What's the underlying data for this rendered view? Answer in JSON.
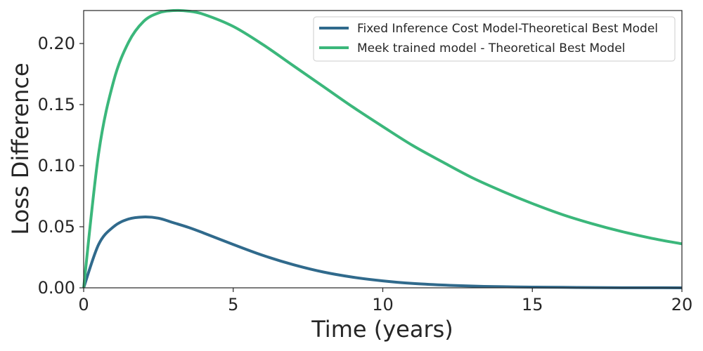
{
  "chart_data": {
    "type": "line",
    "title": "",
    "xlabel": "Time (years)",
    "ylabel": "Loss Difference",
    "xlim": [
      0,
      20
    ],
    "ylim": [
      0,
      0.227
    ],
    "xticks": [
      0,
      5,
      10,
      15,
      20
    ],
    "xtick_labels": [
      "0",
      "5",
      "10",
      "15",
      "20"
    ],
    "yticks": [
      0,
      0.05,
      0.1,
      0.15,
      0.2
    ],
    "ytick_labels": [
      "0.00",
      "0.05",
      "0.10",
      "0.15",
      "0.20"
    ],
    "grid": false,
    "legend_position": "top-right",
    "x": [
      0,
      0.5,
      1,
      1.5,
      2,
      2.5,
      3,
      3.5,
      4,
      5,
      6,
      7,
      8,
      9,
      10,
      11,
      12,
      13,
      14,
      15,
      16,
      17,
      18,
      19,
      20
    ],
    "series": [
      {
        "name": "Fixed Inference Cost Model-Theoretical Best Model",
        "color": "#306a8c",
        "values": [
          0,
          0.0355,
          0.05,
          0.0563,
          0.058,
          0.057,
          0.0533,
          0.0495,
          0.045,
          0.0355,
          0.0265,
          0.019,
          0.013,
          0.0087,
          0.0057,
          0.0036,
          0.0023,
          0.0014,
          0.0009,
          0.0006,
          0.0004,
          0.0002,
          0.0001,
          0.0001,
          0.0
        ]
      },
      {
        "name": "Meek trained model - Theoretical Best Model",
        "color": "#3bb77b",
        "values": [
          0,
          0.11,
          0.169,
          0.201,
          0.218,
          0.225,
          0.227,
          0.2265,
          0.224,
          0.214,
          0.199,
          0.182,
          0.165,
          0.148,
          0.132,
          0.1165,
          0.103,
          0.09,
          0.079,
          0.069,
          0.06,
          0.0525,
          0.046,
          0.0405,
          0.036
        ]
      }
    ]
  }
}
